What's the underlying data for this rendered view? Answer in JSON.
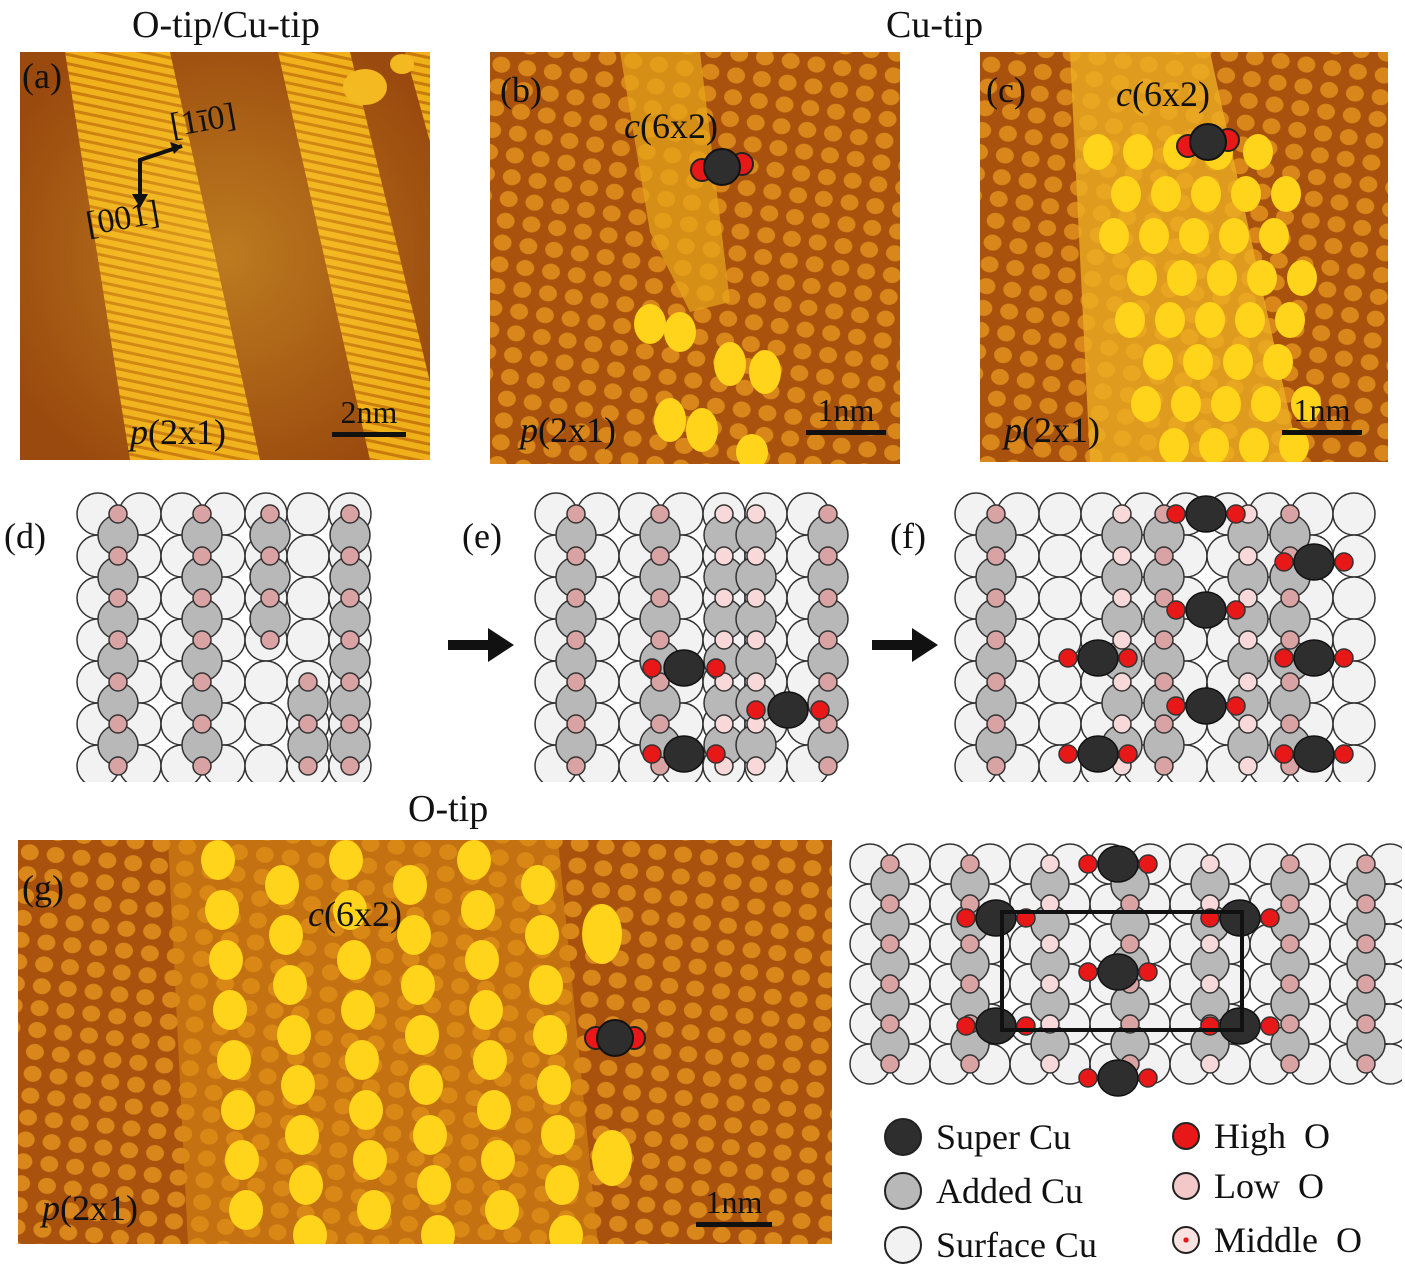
{
  "headings": {
    "top_left": "O-tip/Cu-tip",
    "top_right": "Cu-tip",
    "bottom": "O-tip"
  },
  "panels": {
    "a": {
      "label": "(a)",
      "phase": "p(2x1)",
      "scale": "2nm",
      "dir1": "[1̅ 1̅ 0]",
      "dir1_text": "[1ī0]",
      "dir2": "[001]"
    },
    "b": {
      "label": "(b)",
      "phase_top": "c(6x2)",
      "phase_bottom": "p(2x1)",
      "scale": "1nm"
    },
    "c": {
      "label": "(c)",
      "phase_top": "c(6x2)",
      "phase_bottom": "p(2x1)",
      "scale": "1nm"
    },
    "d": {
      "label": "(d)"
    },
    "e": {
      "label": "(e)"
    },
    "f": {
      "label": "(f)"
    },
    "g": {
      "label": "(g)",
      "phase_top": "c(6x2)",
      "phase_bottom": "p(2x1)",
      "scale": "1nm"
    }
  },
  "legend": {
    "super_cu": "Super Cu",
    "added_cu": "Added Cu",
    "surface_cu": "Surface Cu",
    "high_o": "High  O",
    "low_o": "Low  O",
    "middle_o": "Middle  O"
  },
  "colors": {
    "stm_dark": "#9a4a0e",
    "stm_mid": "#d07a10",
    "stm_bright": "#ffd21a",
    "surface_cu": "#f2f2f2",
    "added_cu": "#b8b8b8",
    "super_cu": "#2e2e2e",
    "high_o": "#e81818",
    "low_o": "#d9a3a3",
    "middle_o": "#f8d8d8"
  }
}
